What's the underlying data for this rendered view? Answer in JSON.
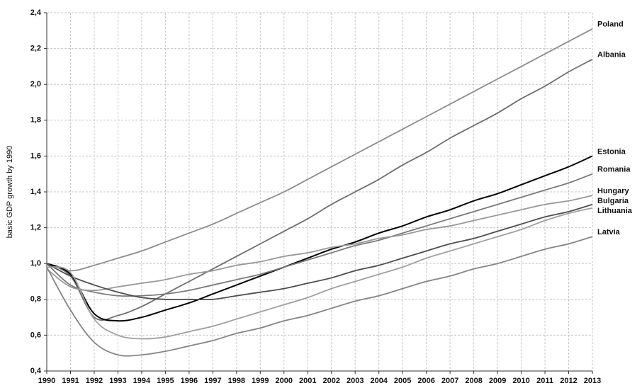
{
  "chart_data": {
    "type": "line",
    "y_label": "basic GDP growth by 1990",
    "x": [
      1990,
      1991,
      1992,
      1993,
      1994,
      1995,
      1996,
      1997,
      1998,
      1999,
      2000,
      2001,
      2002,
      2003,
      2004,
      2005,
      2006,
      2007,
      2008,
      2009,
      2010,
      2011,
      2012,
      2013
    ],
    "xlim": [
      1990,
      2013
    ],
    "xticks": [
      1990,
      1991,
      1992,
      1993,
      1994,
      1995,
      1996,
      1997,
      1998,
      1999,
      2000,
      2001,
      2002,
      2003,
      2004,
      2005,
      2006,
      2007,
      2008,
      2009,
      2010,
      2011,
      2012,
      2013
    ],
    "ylim": [
      0.4,
      2.4
    ],
    "yticks": [
      {
        "value": 0.4,
        "label": "0,4"
      },
      {
        "value": 0.6,
        "label": "0,6"
      },
      {
        "value": 0.8,
        "label": "0,8"
      },
      {
        "value": 1.0,
        "label": "1,0"
      },
      {
        "value": 1.2,
        "label": "1,2"
      },
      {
        "value": 1.4,
        "label": "1,4"
      },
      {
        "value": 1.6,
        "label": "1,6"
      },
      {
        "value": 1.8,
        "label": "1,8"
      },
      {
        "value": 2.0,
        "label": "2,0"
      },
      {
        "value": 2.2,
        "label": "2,2"
      },
      {
        "value": 2.4,
        "label": "2,4"
      }
    ],
    "grid": true,
    "series": [
      {
        "name": "Poland",
        "color": "#8c8c8c",
        "values": [
          1.0,
          0.96,
          0.99,
          1.03,
          1.07,
          1.12,
          1.17,
          1.22,
          1.28,
          1.34,
          1.4,
          1.47,
          1.54,
          1.61,
          1.68,
          1.75,
          1.82,
          1.89,
          1.96,
          2.03,
          2.1,
          2.17,
          2.24,
          2.31
        ]
      },
      {
        "name": "Albania",
        "color": "#6e6e6e",
        "values": [
          1.0,
          0.93,
          0.7,
          0.71,
          0.76,
          0.83,
          0.9,
          0.97,
          1.04,
          1.11,
          1.18,
          1.25,
          1.33,
          1.4,
          1.47,
          1.55,
          1.62,
          1.7,
          1.77,
          1.84,
          1.92,
          1.99,
          2.07,
          2.14
        ]
      },
      {
        "name": "Estonia",
        "color": "#000000",
        "values": [
          1.0,
          0.94,
          0.72,
          0.68,
          0.7,
          0.74,
          0.78,
          0.83,
          0.88,
          0.93,
          0.98,
          1.03,
          1.08,
          1.12,
          1.17,
          1.21,
          1.26,
          1.3,
          1.35,
          1.39,
          1.44,
          1.49,
          1.54,
          1.6
        ]
      },
      {
        "name": "Romania",
        "color": "#7a7a7a",
        "values": [
          1.0,
          0.88,
          0.84,
          0.82,
          0.82,
          0.83,
          0.85,
          0.88,
          0.91,
          0.94,
          0.98,
          1.02,
          1.06,
          1.1,
          1.13,
          1.17,
          1.21,
          1.25,
          1.29,
          1.33,
          1.37,
          1.41,
          1.45,
          1.5
        ]
      },
      {
        "name": "Hungary",
        "color": "#999999",
        "values": [
          0.97,
          0.87,
          0.85,
          0.87,
          0.89,
          0.91,
          0.94,
          0.96,
          0.99,
          1.01,
          1.04,
          1.06,
          1.09,
          1.11,
          1.14,
          1.16,
          1.19,
          1.21,
          1.24,
          1.27,
          1.3,
          1.33,
          1.35,
          1.38
        ]
      },
      {
        "name": "Bulgaria",
        "color": "#4d4d4d",
        "values": [
          1.0,
          0.93,
          0.88,
          0.84,
          0.81,
          0.8,
          0.8,
          0.8,
          0.82,
          0.84,
          0.86,
          0.89,
          0.92,
          0.96,
          0.99,
          1.03,
          1.07,
          1.11,
          1.14,
          1.18,
          1.22,
          1.26,
          1.29,
          1.33
        ]
      },
      {
        "name": "Lithuania",
        "color": "#a0a0a0",
        "values": [
          0.98,
          0.95,
          0.69,
          0.6,
          0.58,
          0.59,
          0.62,
          0.65,
          0.69,
          0.73,
          0.77,
          0.81,
          0.86,
          0.9,
          0.94,
          0.98,
          1.03,
          1.07,
          1.11,
          1.15,
          1.19,
          1.24,
          1.28,
          1.31
        ]
      },
      {
        "name": "Latvia",
        "color": "#858585",
        "values": [
          0.98,
          0.74,
          0.56,
          0.49,
          0.49,
          0.51,
          0.54,
          0.57,
          0.61,
          0.64,
          0.68,
          0.71,
          0.75,
          0.79,
          0.82,
          0.86,
          0.9,
          0.93,
          0.97,
          1.0,
          1.04,
          1.08,
          1.11,
          1.15
        ]
      }
    ]
  }
}
